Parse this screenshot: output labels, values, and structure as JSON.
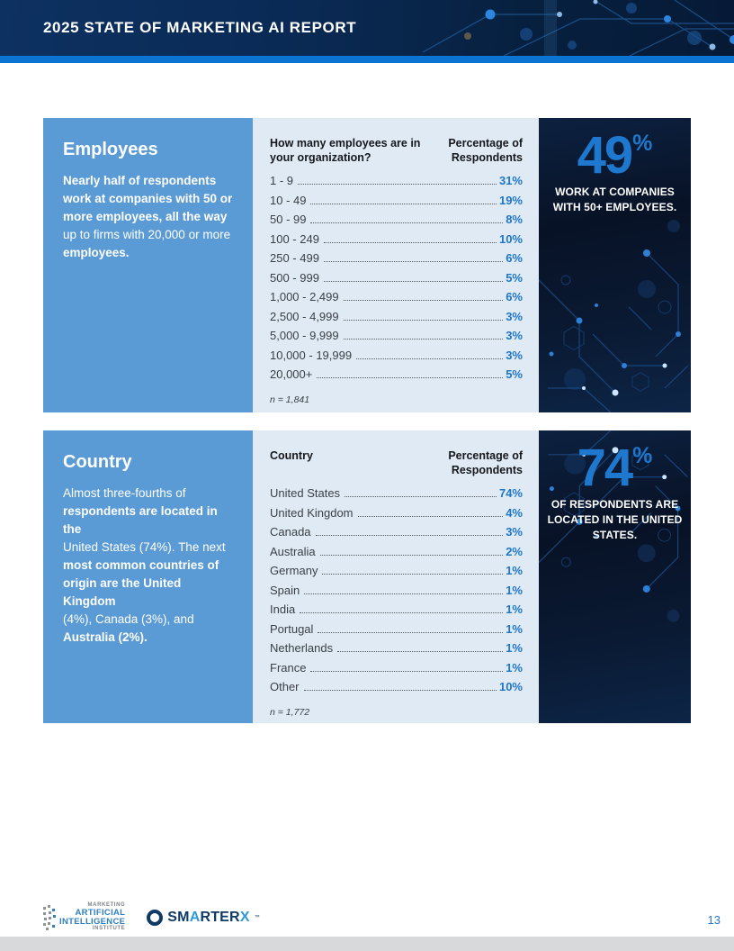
{
  "header": {
    "title": "2025 STATE OF MARKETING AI REPORT"
  },
  "sections": [
    {
      "heading": "Employees",
      "description_lines": [
        {
          "text": "Nearly half of respondents",
          "bold": true
        },
        {
          "text": "work at companies with 50 or",
          "bold": true
        },
        {
          "text": "more employees, all the way",
          "bold": true
        },
        {
          "text": "up to firms with 20,000 or more",
          "bold": false
        },
        {
          "text": "employees.",
          "bold": true
        }
      ],
      "table": {
        "header_left": "How many employees are in your organization?",
        "header_right": "Percentage of Respondents",
        "rows": [
          {
            "label": "1 - 9",
            "value": "31%"
          },
          {
            "label": "10 - 49",
            "value": "19%"
          },
          {
            "label": "50 - 99",
            "value": "8%"
          },
          {
            "label": "100 - 249",
            "value": "10%"
          },
          {
            "label": "250 - 499",
            "value": "6%"
          },
          {
            "label": "500 - 999",
            "value": "5%"
          },
          {
            "label": "1,000 - 2,499",
            "value": "6%"
          },
          {
            "label": "2,500 - 4,999",
            "value": "3%"
          },
          {
            "label": "5,000 - 9,999",
            "value": "3%"
          },
          {
            "label": "10,000 - 19,999",
            "value": "3%"
          },
          {
            "label": "20,000+",
            "value": "5%"
          }
        ],
        "footnote": "n = 1,841"
      },
      "stat": {
        "number": "49",
        "percent": "%",
        "caption": "WORK AT COMPANIES WITH 50+ EMPLOYEES."
      }
    },
    {
      "heading": "Country",
      "description_lines": [
        {
          "text": "Almost three-fourths of",
          "bold": false
        },
        {
          "text": "respondents are located in the",
          "bold": true
        },
        {
          "text": "United States (74%). The next",
          "bold": false
        },
        {
          "text": "most common countries of",
          "bold": true
        },
        {
          "text": "origin are the United Kingdom",
          "bold": true
        },
        {
          "text": "(4%), Canada (3%), and",
          "bold": false
        },
        {
          "text": "Australia (2%).",
          "bold": true
        }
      ],
      "table": {
        "header_left": "Country",
        "header_right": "Percentage of Respondents",
        "rows": [
          {
            "label": "United States",
            "value": "74%"
          },
          {
            "label": "United Kingdom",
            "value": "4%"
          },
          {
            "label": "Canada",
            "value": "3%"
          },
          {
            "label": "Australia",
            "value": "2%"
          },
          {
            "label": "Germany",
            "value": "1%"
          },
          {
            "label": "Spain",
            "value": "1%"
          },
          {
            "label": "India",
            "value": "1%"
          },
          {
            "label": "Portugal",
            "value": "1%"
          },
          {
            "label": "Netherlands",
            "value": "1%"
          },
          {
            "label": "France",
            "value": "1%"
          },
          {
            "label": "Other",
            "value": "10%"
          }
        ],
        "footnote": "n = 1,772"
      },
      "stat": {
        "number": "74",
        "percent": "%",
        "caption": "OF RESPONDENTS ARE LOCATED IN THE UNITED STATES."
      }
    }
  ],
  "footer": {
    "mai_lines": [
      "MARKETING",
      "ARTIFICIAL",
      "INTELLIGENCE",
      "INSTITUTE"
    ],
    "smarterx_segments": [
      {
        "text": "SM",
        "tone": "dark"
      },
      {
        "text": "A",
        "tone": "blue"
      },
      {
        "text": "RTER",
        "tone": "dark"
      },
      {
        "text": "X",
        "tone": "blue"
      }
    ],
    "smarterx_tm": "™",
    "page_number": "13"
  },
  "colors": {
    "header_navy": "#0a2a52",
    "accent_blue": "#0c74d2",
    "panel_blue": "#5b9bd5",
    "panel_light": "#e0eaf5",
    "stat_navy": "#0a1628",
    "value_blue": "#1e76c8",
    "stat_number_blue": "#1e78cd"
  }
}
